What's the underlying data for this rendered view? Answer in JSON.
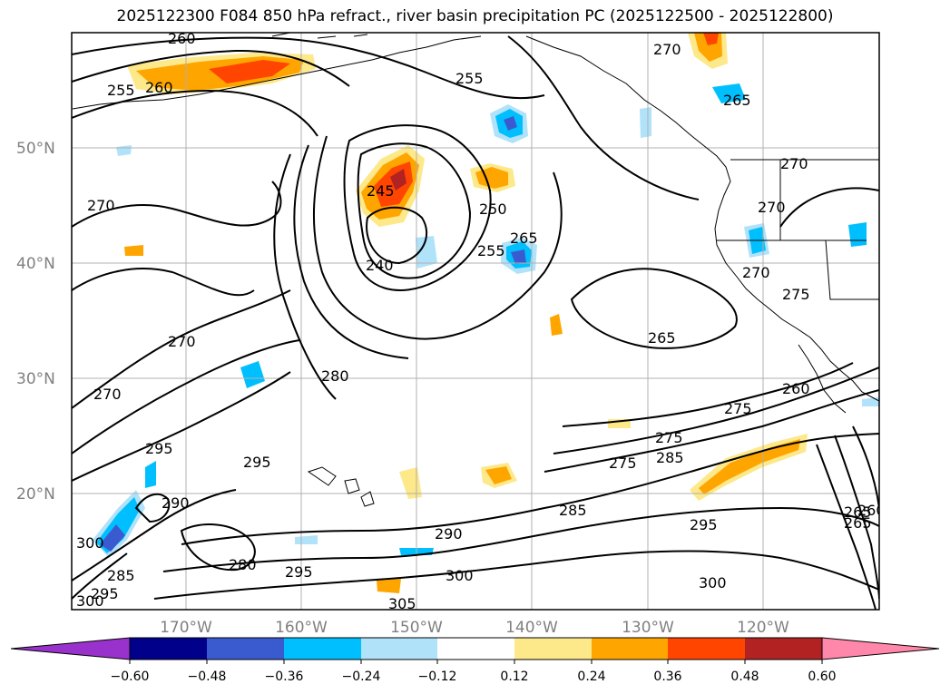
{
  "title": "2025122300 F084 850 hPa refract., river basin precipitation PC (2025122500 - 2025122800)",
  "map": {
    "lat_labels": [
      "50°N",
      "40°N",
      "30°N",
      "20°N"
    ],
    "lon_labels": [
      "170°W",
      "160°W",
      "150°W",
      "140°W",
      "130°W",
      "120°W"
    ],
    "contour_labels": [
      "260",
      "270",
      "255",
      "260",
      "255",
      "265",
      "270",
      "245",
      "250",
      "255",
      "265",
      "240",
      "270",
      "270",
      "280",
      "265",
      "270",
      "275",
      "275",
      "260",
      "285",
      "265",
      "270",
      "295",
      "295",
      "290",
      "300",
      "285",
      "295",
      "300",
      "280",
      "295",
      "290",
      "305",
      "300",
      "275",
      "275",
      "285",
      "295",
      "300",
      "265",
      "260",
      "270"
    ],
    "colors": {
      "land_outline": "#000000",
      "contour": "#000000",
      "grid": "#b0b0b0"
    }
  },
  "colorbar": {
    "tick_labels": [
      "−0.60",
      "−0.48",
      "−0.36",
      "−0.24",
      "−0.12",
      "0.12",
      "0.24",
      "0.36",
      "0.48",
      "0.60"
    ],
    "levels": [
      -0.6,
      -0.48,
      -0.36,
      -0.24,
      -0.12,
      0.12,
      0.24,
      0.36,
      0.48,
      0.6
    ],
    "under_color": "#9932cc",
    "over_color": "#ff88aa",
    "bin_colors": [
      "#00008b",
      "#3a5bd0",
      "#00bfff",
      "#b0e2fa",
      "#ffffff",
      "#fde88a",
      "#ffa500",
      "#ff4500",
      "#b22222"
    ]
  }
}
